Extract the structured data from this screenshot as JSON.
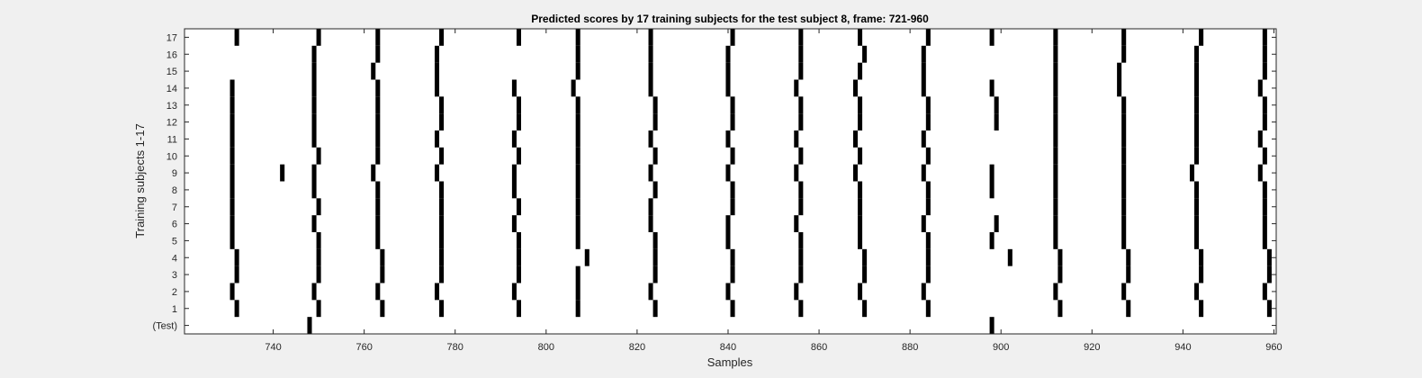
{
  "chart_data": {
    "type": "heatmap",
    "title": "Predicted scores by 17 training subjects for the test subject 8, frame: 721-960",
    "xlabel": "Samples",
    "ylabel": "Training subjects 1-17",
    "xlim": [
      721,
      960
    ],
    "x_ticks": [
      740,
      760,
      780,
      800,
      820,
      840,
      860,
      880,
      900,
      920,
      940,
      960
    ],
    "y_tick_labels": [
      "(Test)",
      "1",
      "2",
      "3",
      "4",
      "5",
      "6",
      "7",
      "8",
      "9",
      "10",
      "11",
      "12",
      "13",
      "14",
      "15",
      "16",
      "17"
    ],
    "grid": false,
    "colors": {
      "mark": "#000000",
      "background": "#ffffff",
      "figure": "#f0f0f0"
    },
    "rows": [
      {
        "label": "(Test)",
        "x": [
          748,
          898
        ]
      },
      {
        "label": "1",
        "x": [
          732,
          750,
          764,
          777,
          794,
          807,
          824,
          841,
          856,
          870,
          884,
          913,
          928,
          944,
          959
        ]
      },
      {
        "label": "2",
        "x": [
          731,
          749,
          763,
          776,
          793,
          807,
          823,
          840,
          855,
          869,
          883,
          912,
          927,
          943,
          958
        ]
      },
      {
        "label": "3",
        "x": [
          732,
          750,
          764,
          777,
          794,
          807,
          824,
          841,
          856,
          870,
          884,
          913,
          928,
          944,
          959
        ]
      },
      {
        "label": "4",
        "x": [
          732,
          750,
          764,
          777,
          794,
          809,
          824,
          841,
          856,
          870,
          884,
          902,
          913,
          928,
          944,
          959
        ]
      },
      {
        "label": "5",
        "x": [
          731,
          750,
          763,
          777,
          794,
          807,
          824,
          840,
          856,
          869,
          884,
          898,
          912,
          927,
          943,
          958
        ]
      },
      {
        "label": "6",
        "x": [
          731,
          749,
          763,
          777,
          793,
          807,
          823,
          840,
          855,
          869,
          883,
          899,
          912,
          927,
          943,
          958
        ]
      },
      {
        "label": "7",
        "x": [
          731,
          750,
          763,
          777,
          794,
          807,
          823,
          841,
          856,
          869,
          884,
          912,
          927,
          943,
          958
        ]
      },
      {
        "label": "8",
        "x": [
          731,
          749,
          763,
          777,
          793,
          807,
          824,
          841,
          856,
          869,
          884,
          898,
          912,
          927,
          943,
          958
        ]
      },
      {
        "label": "9",
        "x": [
          731,
          742,
          749,
          762,
          776,
          793,
          807,
          823,
          840,
          855,
          868,
          883,
          898,
          912,
          927,
          942,
          957
        ]
      },
      {
        "label": "10",
        "x": [
          731,
          750,
          763,
          777,
          794,
          807,
          824,
          841,
          856,
          869,
          884,
          912,
          927,
          943,
          958
        ]
      },
      {
        "label": "11",
        "x": [
          731,
          749,
          763,
          776,
          793,
          807,
          823,
          840,
          855,
          868,
          883,
          912,
          927,
          943,
          957
        ]
      },
      {
        "label": "12",
        "x": [
          731,
          749,
          763,
          777,
          794,
          807,
          824,
          841,
          856,
          869,
          884,
          899,
          912,
          927,
          943,
          958
        ]
      },
      {
        "label": "13",
        "x": [
          731,
          749,
          763,
          777,
          794,
          807,
          824,
          841,
          856,
          869,
          884,
          899,
          912,
          927,
          943,
          958
        ]
      },
      {
        "label": "14",
        "x": [
          731,
          749,
          763,
          776,
          793,
          806,
          823,
          840,
          855,
          868,
          883,
          898,
          912,
          926,
          943,
          957
        ]
      },
      {
        "label": "15",
        "x": [
          749,
          762,
          776,
          807,
          823,
          840,
          856,
          869,
          883,
          912,
          926,
          943,
          958
        ]
      },
      {
        "label": "16",
        "x": [
          749,
          763,
          776,
          807,
          823,
          840,
          856,
          870,
          883,
          912,
          927,
          943,
          958
        ]
      },
      {
        "label": "17",
        "x": [
          732,
          750,
          763,
          777,
          794,
          807,
          823,
          841,
          856,
          869,
          884,
          898,
          912,
          927,
          944,
          958
        ]
      }
    ]
  }
}
